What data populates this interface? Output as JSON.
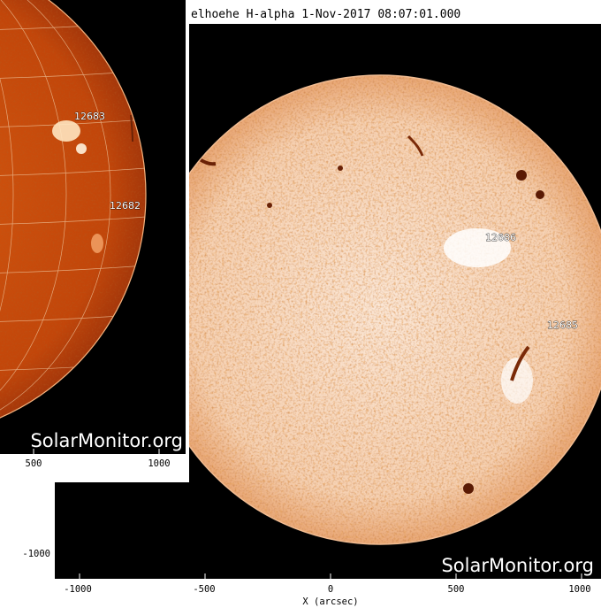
{
  "back_panel": {
    "title": "elhoehe H-alpha  1-Nov-2017 08:07:01.000",
    "watermark": "SolarMonitor.org",
    "x_ticks": [
      "-1000",
      "-500",
      "0",
      "500",
      "1000"
    ],
    "y_ticks": [
      "-1000"
    ],
    "x_axis_label": "X (arcsec)",
    "regions": [
      "12686",
      "12685"
    ],
    "colors": {
      "disk_light": "#fbe3cf",
      "disk_dark": "#c0581c",
      "background": "#000000"
    }
  },
  "front_panel": {
    "watermark": "SolarMonitor.org",
    "x_ticks": [
      "500",
      "1000"
    ],
    "regions": [
      "12683",
      "12682"
    ],
    "colors": {
      "disk": "#c2460a",
      "grid": "#f0c8a0",
      "background": "#000000"
    }
  }
}
